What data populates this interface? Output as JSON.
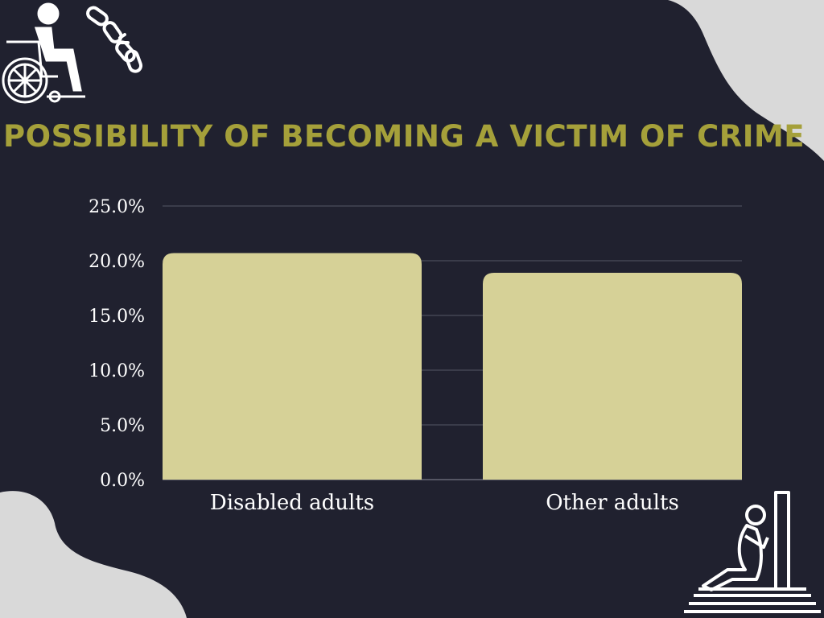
{
  "title": "POSSIBILITY OF BECOMING A VICTIM OF CRIME",
  "colors": {
    "background": "#20212f",
    "title": "#a5a03a",
    "bar": "#d6d197",
    "blob": "#d9d9d9",
    "gridline": "#555766",
    "text": "#ffffff"
  },
  "icons": [
    "wheelchair-user-icon",
    "broken-chain-icon",
    "sad-person-on-steps-icon"
  ],
  "chart_data": {
    "type": "bar",
    "categories": [
      "Disabled adults",
      "Other adults"
    ],
    "values": [
      20.7,
      18.9
    ],
    "ylim": [
      0,
      25
    ],
    "yticks": [
      "0.0%",
      "5.0%",
      "10.0%",
      "15.0%",
      "20.0%",
      "25.0%"
    ],
    "title": "",
    "xlabel": "",
    "ylabel": "",
    "grid": true
  }
}
